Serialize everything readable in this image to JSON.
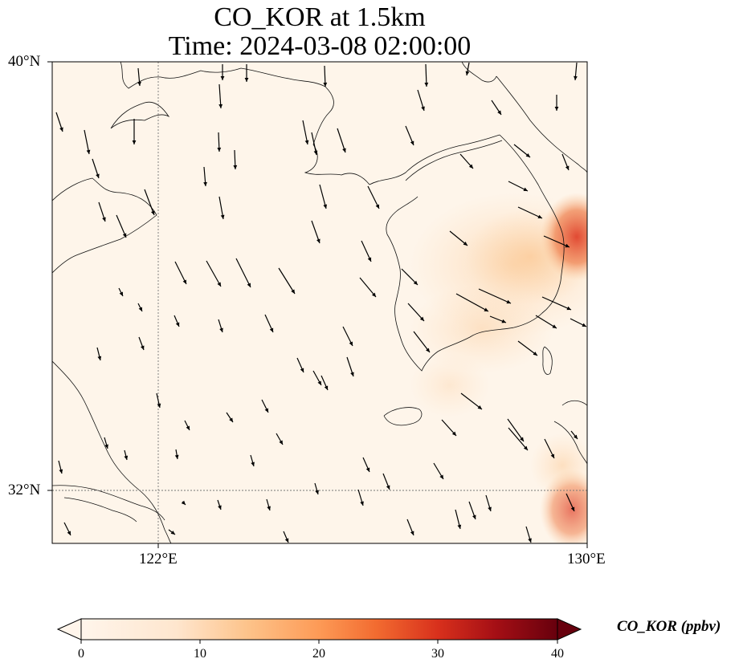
{
  "title": {
    "line1": "CO_KOR at 1.5km",
    "line2": "Time: 2024-03-08 02:00:00"
  },
  "map": {
    "lat_range": [
      31,
      40
    ],
    "lon_range": [
      120,
      130
    ],
    "y_ticks": [
      "40°N",
      "32°N"
    ],
    "x_ticks": [
      "122°E",
      "130°E"
    ],
    "gridlines": "dotted",
    "background_color": "#fff5eb"
  },
  "colorbar": {
    "label": "CO_KOR (ppbv)",
    "ticks": [
      "0",
      "10",
      "20",
      "30",
      "40"
    ],
    "range": [
      0,
      40
    ],
    "extend": "both",
    "colormap": [
      "#fff5eb",
      "#fdd0a2",
      "#fdae6b",
      "#f16913",
      "#d94801",
      "#a50f15",
      "#67000d"
    ]
  },
  "features": [
    "coastlines",
    "wind vectors",
    "CO concentration field"
  ]
}
